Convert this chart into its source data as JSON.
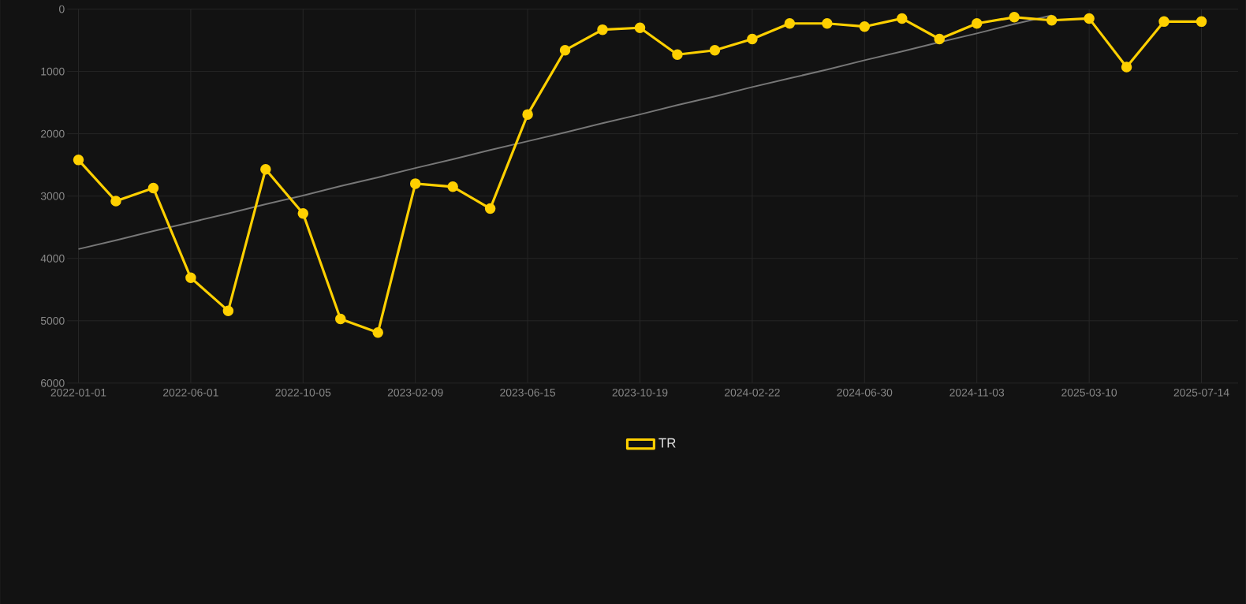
{
  "chart_data": {
    "type": "line",
    "categories": [
      "2022-01-01",
      null,
      null,
      "2022-06-01",
      null,
      null,
      "2022-10-05",
      null,
      null,
      "2023-02-09",
      null,
      null,
      "2023-06-15",
      null,
      null,
      "2023-10-19",
      null,
      null,
      "2024-02-22",
      null,
      null,
      "2024-06-30",
      null,
      null,
      "2024-11-03",
      null,
      null,
      "2025-03-10",
      null,
      null,
      "2025-07-14"
    ],
    "series": [
      {
        "name": "TR",
        "color": "#ffd000",
        "marker": "circle",
        "line_style": "solid",
        "values": [
          2420,
          3080,
          2870,
          4310,
          4840,
          2570,
          3280,
          4970,
          5190,
          2800,
          2850,
          3200,
          1690,
          660,
          330,
          300,
          730,
          660,
          480,
          230,
          230,
          280,
          150,
          480,
          230,
          130,
          180,
          150,
          930,
          200,
          200
        ]
      },
      {
        "type": "line",
        "color": "#777777",
        "marker": "none",
        "line_style": "solid",
        "values": [
          3850,
          3710,
          3560,
          3420,
          3280,
          3130,
          2990,
          2840,
          2700,
          2550,
          2410,
          2260,
          2120,
          1980,
          1830,
          1690,
          1540,
          1400,
          1250,
          1110,
          970,
          820,
          680,
          530,
          390,
          240,
          100,
          null,
          null,
          null,
          null
        ]
      }
    ],
    "ylim": [
      6000,
      0
    ],
    "yticks": [
      0,
      1000,
      2000,
      3000,
      4000,
      5000,
      6000
    ],
    "grid": true,
    "legend": "bottom"
  }
}
